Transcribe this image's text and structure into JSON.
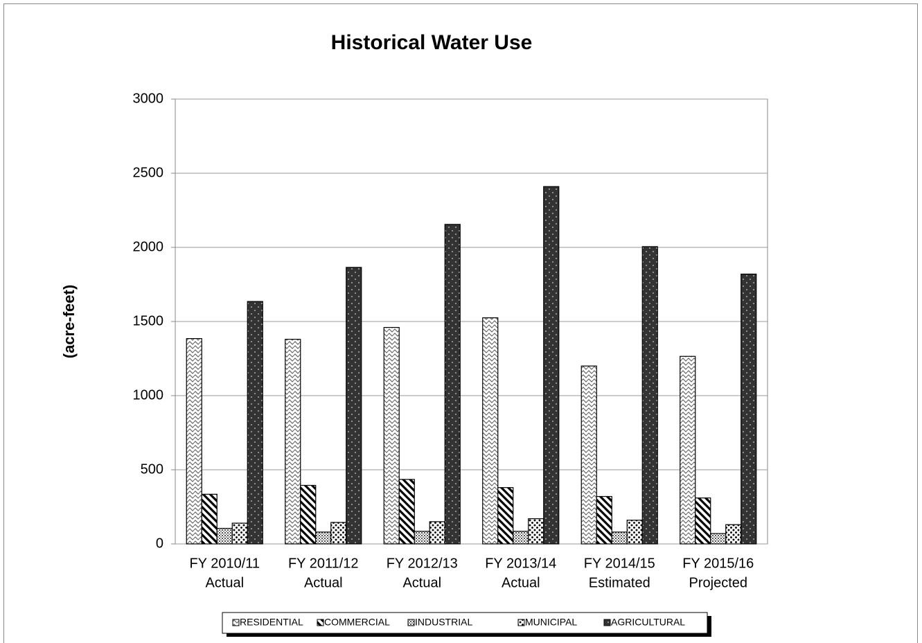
{
  "chart_data": {
    "type": "bar",
    "title": "Historical Water Use",
    "y_label": "(acre-feet)",
    "categories": [
      [
        "FY 2010/11",
        "Actual"
      ],
      [
        "FY 2011/12",
        "Actual"
      ],
      [
        "FY 2012/13",
        "Actual"
      ],
      [
        "FY 2013/14",
        "Actual"
      ],
      [
        "FY 2014/15",
        "Estimated"
      ],
      [
        "FY 2015/16",
        "Projected"
      ]
    ],
    "series": [
      {
        "name": "RESIDENTIAL",
        "color": "#ffffff",
        "values": [
          1385,
          1380,
          1460,
          1525,
          1200,
          1265
        ]
      },
      {
        "name": "COMMERCIAL",
        "color": "#ffffff",
        "values": [
          335,
          395,
          435,
          380,
          320,
          310
        ]
      },
      {
        "name": "INDUSTRIAL",
        "color": "#ffffff",
        "values": [
          105,
          80,
          85,
          85,
          80,
          70
        ]
      },
      {
        "name": "MUNICIPAL",
        "color": "#ffffff",
        "values": [
          140,
          145,
          150,
          170,
          160,
          130
        ]
      },
      {
        "name": "AGRICULTURAL",
        "color": "#333333",
        "values": [
          1635,
          1865,
          2155,
          2410,
          2005,
          1820
        ]
      }
    ],
    "ylim": [
      0,
      3000
    ],
    "yticks": [
      0,
      500,
      1000,
      1500,
      2000,
      2500,
      3000
    ],
    "grid": true
  }
}
